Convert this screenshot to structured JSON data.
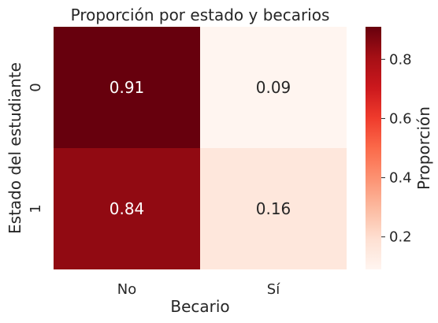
{
  "chart_data": {
    "type": "heatmap",
    "title": "Proporción por estado y becarios",
    "xlabel": "Becario",
    "ylabel": "Estado del estudiante",
    "x_categories": [
      "No",
      "Sí"
    ],
    "y_categories": [
      "0",
      "1"
    ],
    "values": [
      [
        0.91,
        0.09
      ],
      [
        0.84,
        0.16
      ]
    ],
    "colorbar": {
      "label": "Proporción",
      "range": [
        0.09,
        0.91
      ],
      "ticks": [
        0.2,
        0.4,
        0.6,
        0.8
      ],
      "tick_labels": [
        "0.2",
        "0.4",
        "0.6",
        "0.8"
      ],
      "colormap": "Reds"
    },
    "annotation_colors": {
      "dark_cell": "#ffffff",
      "light_cell": "#262626"
    },
    "grid": false
  }
}
